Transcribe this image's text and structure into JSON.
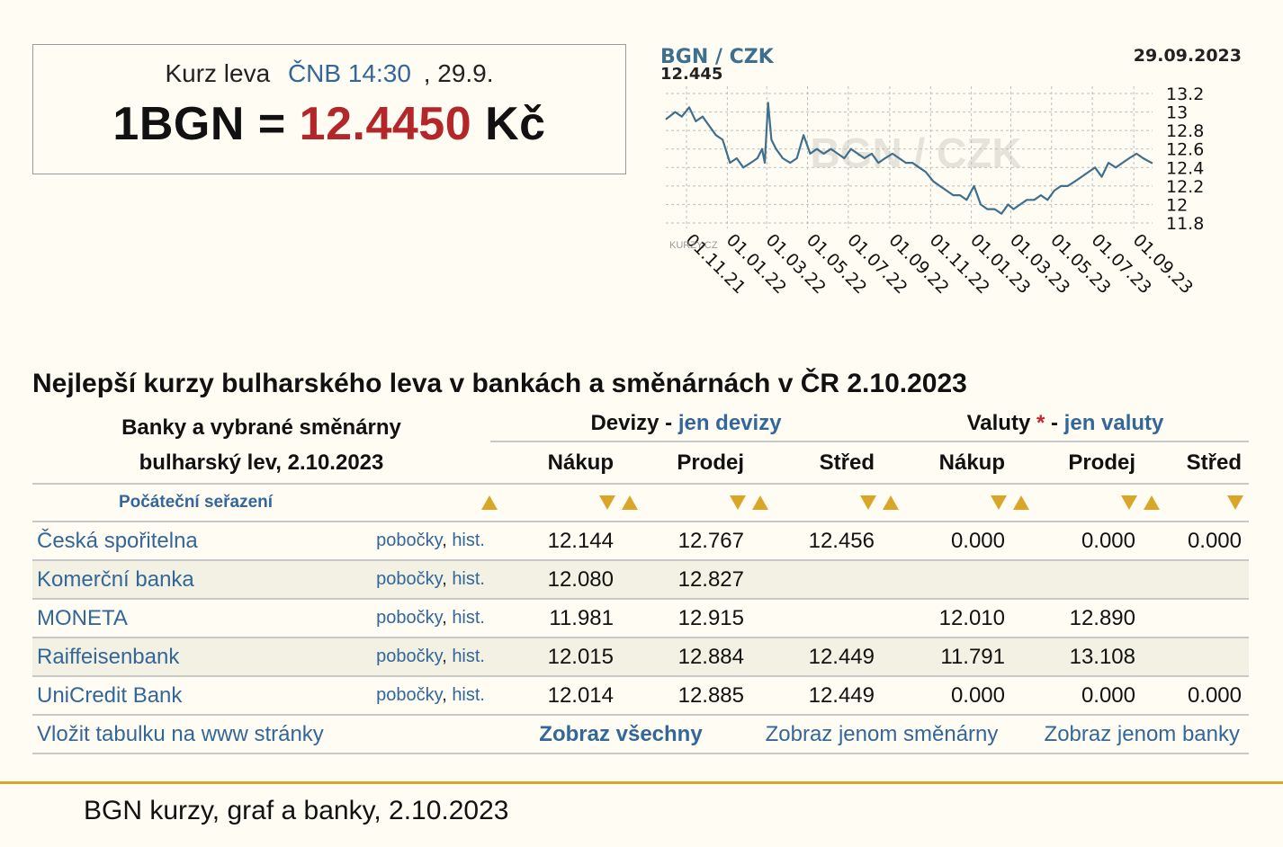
{
  "rate_box": {
    "prefix": "Kurz leva",
    "source": "ČNB 14:30",
    "date": ", 29.9.",
    "lhs": "1BGN =",
    "value": "12.4450",
    "currency": "Kč"
  },
  "chart_data": {
    "type": "line",
    "title": "BGN / CZK",
    "current_value_label": "12.445",
    "date_label": "29.09.2023",
    "watermark": "BGN / CZK",
    "brand": "KURZY.CZ",
    "x_ticks": [
      "01.11.21",
      "01.01.22",
      "01.03.22",
      "01.05.22",
      "01.07.22",
      "01.09.22",
      "01.11.22",
      "01.01.23",
      "01.03.23",
      "01.05.23",
      "01.07.23",
      "01.09.23"
    ],
    "y_ticks": [
      "13.2",
      "13",
      "12.8",
      "12.6",
      "12.4",
      "12.2",
      "12",
      "11.8"
    ],
    "ylim": [
      11.8,
      13.2
    ],
    "grid": true,
    "series": [
      {
        "color": "#3d6f8e",
        "x": [
          "2021-10-01",
          "2021-10-15",
          "2021-10-25",
          "2021-11-05",
          "2021-11-15",
          "2021-11-25",
          "2021-12-05",
          "2021-12-15",
          "2021-12-25",
          "2022-01-05",
          "2022-01-15",
          "2022-01-25",
          "2022-02-05",
          "2022-02-15",
          "2022-02-22",
          "2022-02-26",
          "2022-03-03",
          "2022-03-08",
          "2022-03-15",
          "2022-03-25",
          "2022-04-05",
          "2022-04-15",
          "2022-04-25",
          "2022-05-05",
          "2022-05-15",
          "2022-05-25",
          "2022-06-05",
          "2022-06-15",
          "2022-06-25",
          "2022-07-05",
          "2022-07-15",
          "2022-07-25",
          "2022-08-05",
          "2022-08-15",
          "2022-08-25",
          "2022-09-05",
          "2022-09-15",
          "2022-09-25",
          "2022-10-05",
          "2022-10-15",
          "2022-10-25",
          "2022-11-05",
          "2022-11-15",
          "2022-11-25",
          "2022-12-05",
          "2022-12-15",
          "2022-12-25",
          "2023-01-05",
          "2023-01-15",
          "2023-01-25",
          "2023-02-05",
          "2023-02-15",
          "2023-02-25",
          "2023-03-05",
          "2023-03-15",
          "2023-03-25",
          "2023-04-05",
          "2023-04-15",
          "2023-04-25",
          "2023-05-05",
          "2023-05-15",
          "2023-05-25",
          "2023-06-05",
          "2023-06-15",
          "2023-06-25",
          "2023-07-05",
          "2023-07-15",
          "2023-07-25",
          "2023-08-05",
          "2023-08-15",
          "2023-08-25",
          "2023-09-05",
          "2023-09-15",
          "2023-09-29"
        ],
        "y": [
          12.92,
          13.0,
          12.95,
          13.05,
          12.9,
          12.95,
          12.85,
          12.75,
          12.7,
          12.45,
          12.5,
          12.4,
          12.45,
          12.5,
          12.6,
          12.45,
          13.1,
          12.7,
          12.6,
          12.5,
          12.45,
          12.5,
          12.75,
          12.55,
          12.6,
          12.55,
          12.6,
          12.55,
          12.5,
          12.6,
          12.55,
          12.5,
          12.55,
          12.45,
          12.5,
          12.55,
          12.5,
          12.45,
          12.45,
          12.4,
          12.35,
          12.25,
          12.2,
          12.15,
          12.1,
          12.1,
          12.05,
          12.2,
          12.0,
          11.95,
          11.95,
          11.9,
          12.0,
          11.95,
          12.0,
          12.05,
          12.05,
          12.1,
          12.05,
          12.15,
          12.2,
          12.2,
          12.25,
          12.3,
          12.35,
          12.4,
          12.3,
          12.45,
          12.4,
          12.45,
          12.5,
          12.55,
          12.5,
          12.445
        ]
      }
    ]
  },
  "section": {
    "title": "Nejlepší kurzy bulharského leva v bankách a směnárnách v ČR 2.10.2023"
  },
  "table": {
    "left_header_1": "Banky a vybrané směnárny",
    "left_header_2": "bulharský lev, 2.10.2023",
    "devizy_label": "Devizy",
    "devizy_sep": "-",
    "devizy_link": "jen devizy",
    "valuty_label": "Valuty",
    "valuty_star": "*",
    "valuty_sep": "-",
    "valuty_link": "jen valuty",
    "columns": [
      "Nákup",
      "Prodej",
      "Střed",
      "Nákup",
      "Prodej",
      "Střed"
    ],
    "sort_label": "Počáteční seřazení",
    "link_pobocky": "pobočky",
    "link_comma": ",",
    "link_hist": "hist.",
    "rows": [
      {
        "name": "Česká spořitelna",
        "dev_buy": "12.144",
        "dev_sell": "12.767",
        "dev_mid": "12.456",
        "val_buy": "0.000",
        "val_sell": "0.000",
        "val_mid": "0.000"
      },
      {
        "name": "Komerční banka",
        "dev_buy": "12.080",
        "dev_sell": "12.827",
        "dev_mid": "",
        "val_buy": "",
        "val_sell": "",
        "val_mid": ""
      },
      {
        "name": "MONETA",
        "dev_buy": "11.981",
        "dev_sell": "12.915",
        "dev_mid": "",
        "val_buy": "12.010",
        "val_sell": "12.890",
        "val_mid": ""
      },
      {
        "name": "Raiffeisenbank",
        "dev_buy": "12.015",
        "dev_sell": "12.884",
        "dev_mid": "12.449",
        "val_buy": "11.791",
        "val_sell": "13.108",
        "val_mid": ""
      },
      {
        "name": "UniCredit Bank",
        "dev_buy": "12.014",
        "dev_sell": "12.885",
        "dev_mid": "12.449",
        "val_buy": "0.000",
        "val_sell": "0.000",
        "val_mid": "0.000"
      }
    ],
    "footer": {
      "embed": "Vložit tabulku na www stránky",
      "show_all": "Zobraz všechny",
      "show_exchanges": "Zobraz jenom směnárny",
      "show_banks": "Zobraz jenom banky"
    }
  },
  "page_footer": "BGN kurzy, graf a banky, 2.10.2023"
}
